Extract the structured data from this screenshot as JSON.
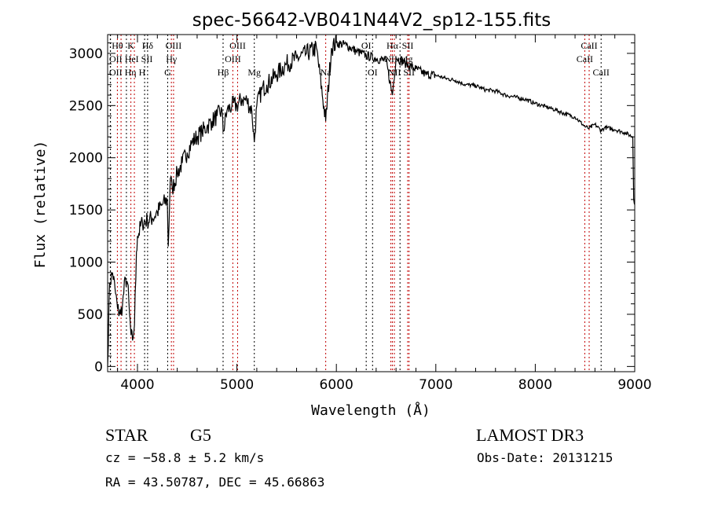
{
  "chart_data": {
    "type": "line",
    "title": "spec-56642-VB041N44V2_sp12-155.fits",
    "xlabel": "Wavelength (Å)",
    "ylabel": "Flux (relative)",
    "xlim": [
      3700,
      9000
    ],
    "ylim": [
      -50,
      3180
    ],
    "xticks": [
      4000,
      5000,
      6000,
      7000,
      8000,
      9000
    ],
    "yticks": [
      0,
      500,
      1000,
      1500,
      2000,
      2500,
      3000
    ],
    "grid": false,
    "series": [
      {
        "name": "spectrum",
        "color": "#000000",
        "x": [
          3700,
          3720,
          3750,
          3780,
          3800,
          3830,
          3850,
          3880,
          3900,
          3920,
          3935,
          3950,
          3970,
          3990,
          4000,
          4050,
          4100,
          4150,
          4200,
          4250,
          4300,
          4310,
          4330,
          4350,
          4400,
          4450,
          4500,
          4550,
          4600,
          4650,
          4700,
          4750,
          4800,
          4850,
          4861,
          4900,
          4950,
          5000,
          5050,
          5100,
          5150,
          5175,
          5200,
          5250,
          5300,
          5400,
          5500,
          5600,
          5700,
          5800,
          5893,
          5950,
          6000,
          6100,
          6200,
          6300,
          6400,
          6500,
          6563,
          6600,
          6700,
          6800,
          6900,
          7000,
          7100,
          7200,
          7300,
          7400,
          7500,
          7600,
          7700,
          7800,
          7900,
          8000,
          8100,
          8200,
          8300,
          8400,
          8498,
          8542,
          8600,
          8662,
          8700,
          8800,
          8900,
          8980,
          8990,
          9000
        ],
        "y": [
          0,
          800,
          900,
          700,
          550,
          500,
          600,
          850,
          800,
          500,
          300,
          250,
          400,
          1100,
          1250,
          1380,
          1400,
          1420,
          1480,
          1550,
          1600,
          1150,
          1800,
          1700,
          1850,
          1950,
          2050,
          2150,
          2200,
          2250,
          2300,
          2350,
          2400,
          2450,
          2250,
          2450,
          2500,
          2500,
          2560,
          2550,
          2450,
          2150,
          2500,
          2650,
          2700,
          2800,
          2900,
          2950,
          3000,
          3050,
          2350,
          3050,
          3100,
          3080,
          3020,
          2980,
          2950,
          2930,
          2600,
          2960,
          2900,
          2850,
          2800,
          2790,
          2760,
          2740,
          2700,
          2690,
          2650,
          2640,
          2600,
          2580,
          2560,
          2520,
          2490,
          2460,
          2420,
          2390,
          2300,
          2280,
          2320,
          2260,
          2290,
          2270,
          2240,
          2200,
          1600,
          1550
        ]
      }
    ],
    "lines": [
      {
        "label": "Hθ",
        "wavelength": 3798,
        "color": "#c00000"
      },
      {
        "label": "K",
        "wavelength": 3934,
        "color": "#c00000"
      },
      {
        "label": "Hδ",
        "wavelength": 4102,
        "color": "#000000"
      },
      {
        "label": "OIII",
        "wavelength": 4363,
        "color": "#c00000"
      },
      {
        "label": "OIII",
        "wavelength": 5007,
        "color": "#c00000"
      },
      {
        "label": "OI",
        "wavelength": 6300,
        "color": "#000000"
      },
      {
        "label": "Hα",
        "wavelength": 6563,
        "color": "#c00000"
      },
      {
        "label": "SII",
        "wavelength": 6717,
        "color": "#c00000"
      },
      {
        "label": "CaII",
        "wavelength": 8542,
        "color": "#c00000"
      },
      {
        "label": "OII",
        "wavelength": 3727,
        "color": "#000000"
      },
      {
        "label": "HeI",
        "wavelength": 3889,
        "color": "#000000"
      },
      {
        "label": "SII",
        "wavelength": 4072,
        "color": "#000000"
      },
      {
        "label": "Hγ",
        "wavelength": 4341,
        "color": "#c00000"
      },
      {
        "label": "OIII",
        "wavelength": 4959,
        "color": "#c00000"
      },
      {
        "label": "NII",
        "wavelength": 6548,
        "color": "#c00000"
      },
      {
        "label": "Mg",
        "wavelength": 6640,
        "color": "#000000"
      },
      {
        "label": "CaII",
        "wavelength": 8498,
        "color": "#c00000"
      },
      {
        "label": "OII",
        "wavelength": 3729,
        "color": "#000000"
      },
      {
        "label": "Hη",
        "wavelength": 3835,
        "color": "#c00000"
      },
      {
        "label": "H",
        "wavelength": 3969,
        "color": "#c00000"
      },
      {
        "label": "G",
        "wavelength": 4304,
        "color": "#000000"
      },
      {
        "label": "Hβ",
        "wavelength": 4861,
        "color": "#000000"
      },
      {
        "label": "Mg",
        "wavelength": 5175,
        "color": "#000000"
      },
      {
        "label": "Na",
        "wavelength": 5893,
        "color": "#c00000"
      },
      {
        "label": "OI",
        "wavelength": 6364,
        "color": "#000000"
      },
      {
        "label": "NII",
        "wavelength": 6583,
        "color": "#c00000"
      },
      {
        "label": "SII",
        "wavelength": 6731,
        "color": "#c00000"
      },
      {
        "label": "CaII",
        "wavelength": 8662,
        "color": "#000000"
      }
    ]
  },
  "info": {
    "class": "STAR",
    "subclass": "G5",
    "survey": "LAMOST DR3",
    "cz": "cz = −58.8 ± 5.2 km/s",
    "obs_date": "Obs-Date: 20131215",
    "coords": "RA =  43.50787, DEC =  45.66863"
  }
}
